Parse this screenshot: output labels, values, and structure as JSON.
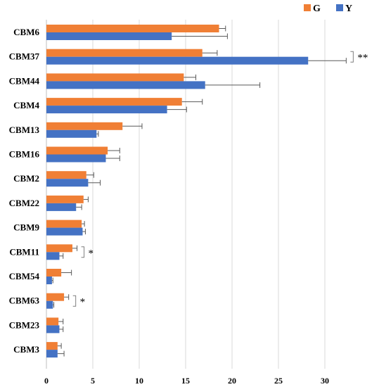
{
  "chart_data": {
    "type": "bar",
    "orientation": "horizontal",
    "categories": [
      "CBM6",
      "CBM37",
      "CBM44",
      "CBM4",
      "CBM13",
      "CBM16",
      "CBM2",
      "CBM22",
      "CBM9",
      "CBM11",
      "CBM54",
      "CBM63",
      "CBM23",
      "CBM3"
    ],
    "series": [
      {
        "name": "G",
        "color": "#F07F35",
        "values": [
          18.6,
          16.8,
          14.8,
          14.6,
          8.2,
          6.6,
          4.3,
          4.0,
          3.8,
          2.8,
          1.6,
          1.9,
          1.3,
          1.2
        ],
        "errors": [
          0.7,
          1.6,
          1.3,
          2.2,
          2.1,
          1.3,
          0.8,
          0.5,
          0.3,
          0.5,
          1.1,
          0.5,
          0.5,
          0.4
        ]
      },
      {
        "name": "Y",
        "color": "#4472C4",
        "values": [
          13.5,
          28.2,
          17.1,
          13.0,
          5.4,
          6.4,
          4.5,
          3.2,
          3.9,
          1.4,
          0.6,
          0.7,
          1.4,
          1.2
        ],
        "errors": [
          6.0,
          4.1,
          5.9,
          2.1,
          0.2,
          1.5,
          1.3,
          0.6,
          0.3,
          0.4,
          0.1,
          0.1,
          0.4,
          0.7
        ]
      }
    ],
    "xlim": [
      0,
      35
    ],
    "xticks": [
      "0",
      "5",
      "10",
      "15",
      "20",
      "25",
      "30"
    ],
    "grid": "vertical",
    "legend_position": "top-right",
    "annotations": [
      {
        "category": "CBM37",
        "text": "**"
      },
      {
        "category": "CBM11",
        "text": "*"
      },
      {
        "category": "CBM63",
        "text": "*"
      }
    ]
  }
}
